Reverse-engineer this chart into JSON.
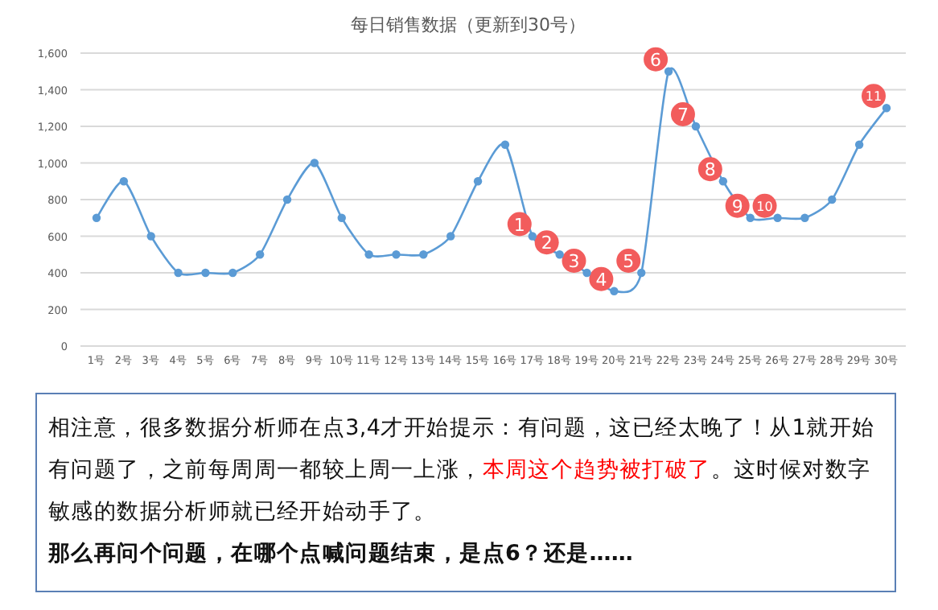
{
  "chart_data": {
    "type": "line",
    "title": "每日销售数据（更新到30号）",
    "categories": [
      "1号",
      "2号",
      "3号",
      "4号",
      "5号",
      "6号",
      "7号",
      "8号",
      "9号",
      "10号",
      "11号",
      "12号",
      "13号",
      "14号",
      "15号",
      "16号",
      "17号",
      "18号",
      "19号",
      "20号",
      "21号",
      "22号",
      "23号",
      "24号",
      "25号",
      "26号",
      "27号",
      "28号",
      "29号",
      "30号"
    ],
    "series": [
      {
        "color": "#5b9bd5",
        "values": [
          700,
          900,
          600,
          400,
          400,
          400,
          500,
          800,
          1000,
          700,
          500,
          500,
          500,
          600,
          900,
          1100,
          600,
          500,
          400,
          300,
          400,
          1500,
          1200,
          900,
          700,
          700,
          700,
          800,
          1100,
          1300
        ]
      }
    ],
    "ylim": [
      0,
      1600
    ],
    "yticks": [
      0,
      200,
      400,
      600,
      800,
      {
        "value": 1000,
        "label": "1,000"
      },
      {
        "value": 1200,
        "label": "1,200"
      },
      {
        "value": 1400,
        "label": "1,400"
      },
      {
        "value": 1600,
        "label": "1,600"
      }
    ],
    "grid": "y",
    "marker": "circle",
    "line_style": "solid",
    "annotations": [
      {
        "text": "1",
        "x": "17号",
        "y": 600
      },
      {
        "text": "2",
        "x": "18号",
        "y": 500
      },
      {
        "text": "3",
        "x": "19号",
        "y": 400
      },
      {
        "text": "4",
        "x": "20号",
        "y": 300
      },
      {
        "text": "5",
        "x": "21号",
        "y": 400
      },
      {
        "text": "6",
        "x": "22号",
        "y": 1500
      },
      {
        "text": "7",
        "x": "23号",
        "y": 1200
      },
      {
        "text": "8",
        "x": "24号",
        "y": 900
      },
      {
        "text": "9",
        "x": "25号",
        "y": 700
      },
      {
        "text": "10",
        "x": "26号",
        "y": 700
      },
      {
        "text": "11",
        "x": "30号",
        "y": 1300
      },
      "相注意，很多数据分析师在点3,4才开始提示：有问题，这已经太晚了！从1就开始有问题了，之前每周周一都较上周一上涨，",
      "本周这个趋势被打破了",
      "。这时候对数字敏感的数据分析师就已经开始动手了。",
      "那么再问个问题，在哪个点喊问题结束，是点6？还是……"
    ]
  }
}
